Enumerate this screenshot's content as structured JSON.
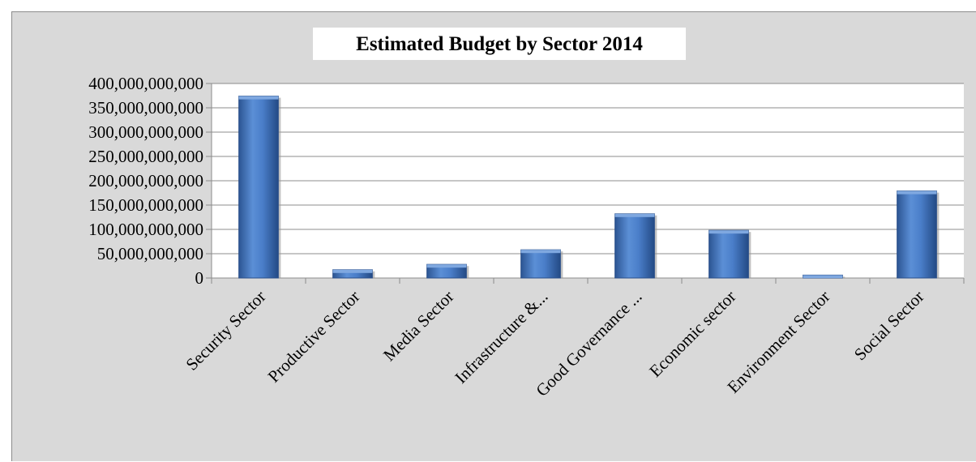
{
  "chart_data": {
    "type": "bar",
    "title": "Estimated Budget by Sector 2014",
    "xlabel": "",
    "ylabel": "",
    "categories": [
      "Security Sector",
      "Productive Sector",
      "Media Sector",
      "Infrastructure &...",
      "Good Governance ...",
      "Economic sector",
      "Environment Sector",
      "Social Sector"
    ],
    "values": [
      374000000000,
      17000000000,
      28000000000,
      58000000000,
      132000000000,
      98000000000,
      6000000000,
      179000000000
    ],
    "ylim": [
      0,
      400000000000
    ],
    "y_ticks": [
      {
        "value": 0,
        "label": "0"
      },
      {
        "value": 50000000000,
        "label": "50,000,000,000"
      },
      {
        "value": 100000000000,
        "label": "100,000,000,000"
      },
      {
        "value": 150000000000,
        "label": "150,000,000,000"
      },
      {
        "value": 200000000000,
        "label": "200,000,000,000"
      },
      {
        "value": 250000000000,
        "label": "250,000,000,000"
      },
      {
        "value": 300000000000,
        "label": "300,000,000,000"
      },
      {
        "value": 350000000000,
        "label": "350,000,000,000"
      },
      {
        "value": 400000000000,
        "label": "400,000,000,000"
      }
    ],
    "grid": true,
    "legend": "none",
    "bar_color": "#4a7ec9",
    "bar_dark_color": "#2a4f8a",
    "plot_background": "#ffffff",
    "chart_background": "#d9d9d9"
  }
}
